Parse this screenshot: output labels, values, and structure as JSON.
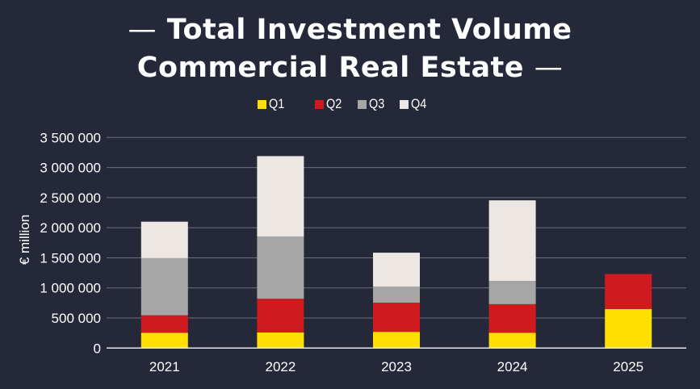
{
  "chart_data": {
    "type": "bar",
    "stacked": true,
    "title_line1": "Total Investment Volume",
    "title_line2": "Commercial Real Estate",
    "title_dash": "—",
    "xlabel": "",
    "ylabel": "€ million",
    "categories": [
      "2021",
      "2022",
      "2023",
      "2024",
      "2025"
    ],
    "series": [
      {
        "name": "Q1",
        "color": "#FFDF00",
        "values": [
          255000,
          260000,
          270000,
          255000,
          650000
        ]
      },
      {
        "name": "Q2",
        "color": "#CF1B1E",
        "values": [
          290000,
          560000,
          485000,
          475000,
          580000
        ]
      },
      {
        "name": "Q3",
        "color": "#A6A6A6",
        "values": [
          950000,
          1035000,
          265000,
          385000,
          null
        ]
      },
      {
        "name": "Q4",
        "color": "#ECE7E2",
        "values": [
          605000,
          1335000,
          565000,
          1340000,
          null
        ]
      }
    ],
    "ylim": [
      0,
      3500000
    ],
    "yticks": [
      0,
      500000,
      1000000,
      1500000,
      2000000,
      2500000,
      3000000,
      3500000
    ],
    "ytick_labels": [
      "0",
      "500 000",
      "1 000 000",
      "1 500 000",
      "2 000 000",
      "2 500 000",
      "3 000 000",
      "3 500 000"
    ],
    "grid": true,
    "legend_position": "top-center",
    "background": "#252839",
    "gridline_color": "#6B6E7E",
    "axis_color": "#E8E8E8"
  }
}
